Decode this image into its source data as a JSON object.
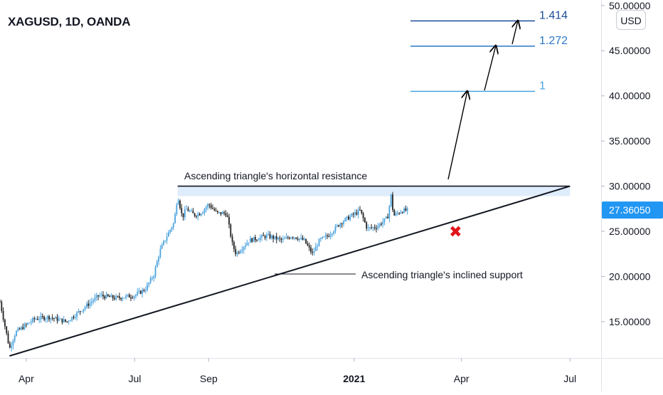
{
  "header": {
    "symbol_title": "XAGUSD, 1D, OANDA",
    "currency_label": "USD"
  },
  "chart_data": {
    "type": "candlestick",
    "title": "XAGUSD, 1D, OANDA",
    "y_axis": {
      "ticks": [
        "50.00000",
        "45.00000",
        "40.00000",
        "35.00000",
        "30.00000",
        "25.00000",
        "20.00000",
        "15.00000"
      ],
      "tick_values": [
        50,
        45,
        40,
        35,
        30,
        25,
        20,
        15
      ],
      "range": [
        10.5,
        50.3
      ],
      "unit": "USD"
    },
    "x_axis": {
      "ticks": [
        "Apr",
        "Jul",
        "Sep",
        "2021",
        "Apr",
        "Jul"
      ],
      "tick_dates": [
        "2020-04-01",
        "2020-07-01",
        "2020-09-01",
        "2021-01-01",
        "2021-04-01",
        "2021-07-01"
      ],
      "range": [
        "2020-03-10",
        "2021-07-14"
      ]
    },
    "current_price": {
      "label": "27.36050",
      "value": 27.3605,
      "color": "#2196f3"
    },
    "price_path": [
      [
        "2020-03-10",
        17.2
      ],
      [
        "2020-03-18",
        12.0
      ],
      [
        "2020-03-23",
        13.8
      ],
      [
        "2020-04-08",
        15.3
      ],
      [
        "2020-04-20",
        15.5
      ],
      [
        "2020-05-05",
        15.0
      ],
      [
        "2020-05-20",
        16.6
      ],
      [
        "2020-06-01",
        17.9
      ],
      [
        "2020-06-15",
        17.6
      ],
      [
        "2020-07-01",
        17.9
      ],
      [
        "2020-07-10",
        18.6
      ],
      [
        "2020-07-17",
        20.2
      ],
      [
        "2020-07-22",
        22.8
      ],
      [
        "2020-07-28",
        24.5
      ],
      [
        "2020-08-03",
        26.0
      ],
      [
        "2020-08-06",
        29.0
      ],
      [
        "2020-08-10",
        26.5
      ],
      [
        "2020-08-13",
        27.5
      ],
      [
        "2020-08-20",
        26.8
      ],
      [
        "2020-08-25",
        27.0
      ],
      [
        "2020-09-01",
        28.0
      ],
      [
        "2020-09-08",
        27.0
      ],
      [
        "2020-09-16",
        27.0
      ],
      [
        "2020-09-21",
        23.5
      ],
      [
        "2020-09-24",
        22.5
      ],
      [
        "2020-10-05",
        24.0
      ],
      [
        "2020-10-20",
        24.5
      ],
      [
        "2020-11-02",
        24.0
      ],
      [
        "2020-11-10",
        24.5
      ],
      [
        "2020-11-20",
        24.0
      ],
      [
        "2020-11-27",
        22.5
      ],
      [
        "2020-12-03",
        24.0
      ],
      [
        "2020-12-10",
        24.5
      ],
      [
        "2020-12-21",
        26.0
      ],
      [
        "2021-01-06",
        27.3
      ],
      [
        "2021-01-12",
        25.3
      ],
      [
        "2021-01-20",
        25.5
      ],
      [
        "2021-01-29",
        26.5
      ],
      [
        "2021-02-01",
        29.0
      ],
      [
        "2021-02-03",
        26.7
      ],
      [
        "2021-02-10",
        27.3
      ],
      [
        "2021-02-16",
        27.3
      ]
    ],
    "annotations": {
      "resistance": {
        "label": "Ascending triangle's horizontal resistance",
        "price": 30.0,
        "zone_low": 28.9,
        "from": "2020-08-06",
        "to": "2021-07-01"
      },
      "support": {
        "label": "Ascending triangle's inclined support",
        "from": [
          "2020-03-18",
          11.2
        ],
        "to": [
          "2021-07-01",
          30.0
        ]
      },
      "fib_levels": [
        {
          "label": "1",
          "price": 40.5
        },
        {
          "label": "1.272",
          "price": 45.5
        },
        {
          "label": "1.414",
          "price": 48.3
        }
      ],
      "invalidation_marker": {
        "symbol": "✖",
        "date": "2021-03-27",
        "price": 25.0
      }
    }
  }
}
